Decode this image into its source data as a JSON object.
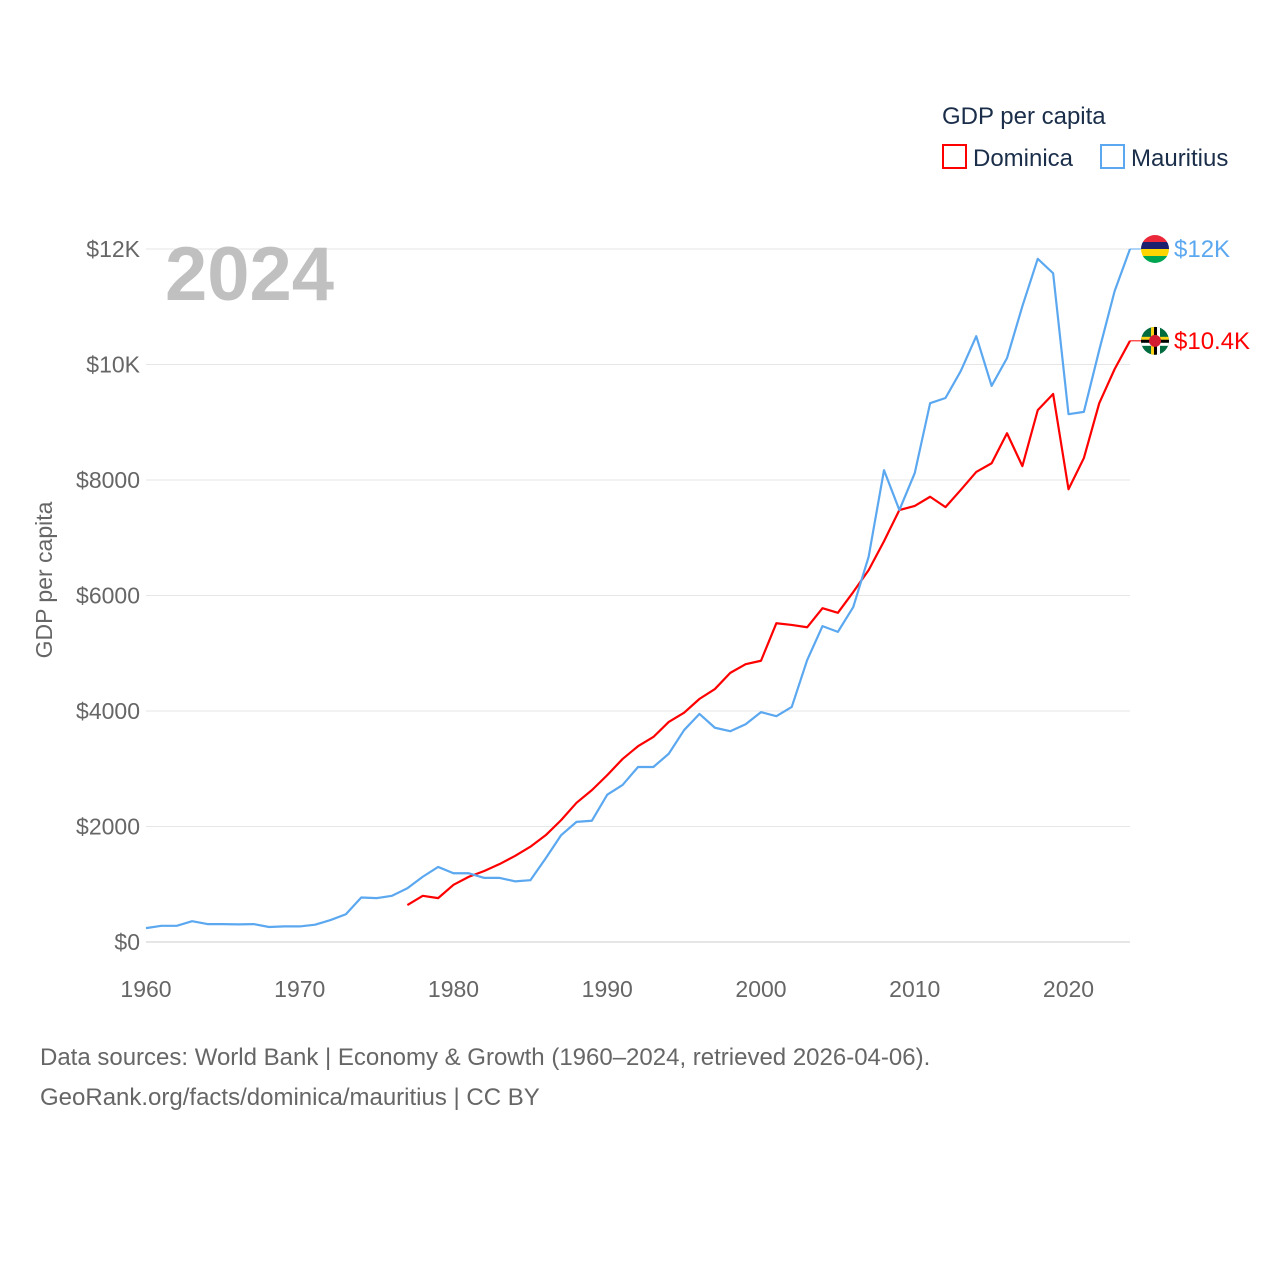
{
  "chart_data": {
    "type": "line",
    "title": "GDP per capita",
    "ylabel": "GDP per capita",
    "xlabel": "",
    "year_label": "2024",
    "xlim": [
      1960,
      2024
    ],
    "ylim": [
      0,
      12000
    ],
    "x_ticks": [
      1960,
      1970,
      1980,
      1990,
      2000,
      2010,
      2020
    ],
    "y_ticks": [
      {
        "value": 0,
        "label": "$0"
      },
      {
        "value": 2000,
        "label": "$2000"
      },
      {
        "value": 4000,
        "label": "$4000"
      },
      {
        "value": 6000,
        "label": "$6000"
      },
      {
        "value": 8000,
        "label": "$8000"
      },
      {
        "value": 10000,
        "label": "$10K"
      },
      {
        "value": 12000,
        "label": "$12K"
      }
    ],
    "grid": true,
    "legend_position": "top-right",
    "series": [
      {
        "name": "Dominica",
        "color": "#ff0000",
        "end_label": "$10.4K",
        "flag": "dominica-flag",
        "start_year": 1977,
        "values": [
          640,
          800,
          760,
          990,
          1130,
          1230,
          1350,
          1490,
          1650,
          1850,
          2110,
          2410,
          2630,
          2890,
          3170,
          3390,
          3550,
          3810,
          3970,
          4210,
          4380,
          4660,
          4810,
          4870,
          5520,
          5490,
          5450,
          5780,
          5700,
          6060,
          6440,
          6940,
          7480,
          7550,
          7710,
          7530,
          7830,
          8140,
          8290,
          8810,
          8240,
          9210,
          9490,
          7840,
          8380,
          9330,
          9920,
          10410
        ]
      },
      {
        "name": "Mauritius",
        "color": "#5ba8f0",
        "end_label": "$12K",
        "flag": "mauritius-flag",
        "start_year": 1960,
        "values": [
          240,
          280,
          280,
          360,
          310,
          310,
          305,
          310,
          260,
          270,
          270,
          300,
          380,
          480,
          770,
          760,
          800,
          930,
          1130,
          1300,
          1190,
          1190,
          1110,
          1110,
          1050,
          1070,
          1450,
          1850,
          2080,
          2100,
          2550,
          2720,
          3030,
          3030,
          3260,
          3670,
          3950,
          3710,
          3650,
          3770,
          3980,
          3910,
          4070,
          4880,
          5470,
          5370,
          5800,
          6670,
          8170,
          7480,
          8120,
          9330,
          9420,
          9890,
          10490,
          9630,
          10110,
          11010,
          11830,
          11580,
          9140,
          9180,
          10250,
          11270,
          12000
        ]
      }
    ]
  },
  "footer": {
    "line1": "Data sources: World Bank | Economy & Growth (1960–2024, retrieved 2026-04-06).",
    "line2": "GeoRank.org/facts/dominica/mauritius | CC BY"
  }
}
